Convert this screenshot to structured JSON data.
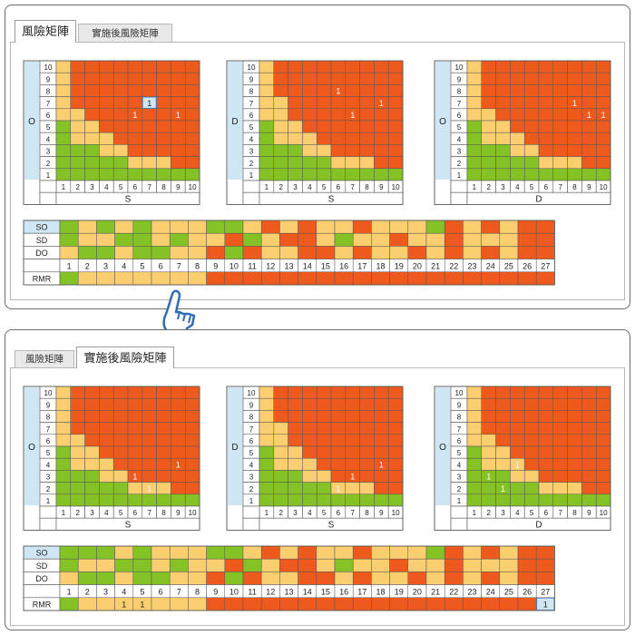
{
  "colors": {
    "red": "#ee5a1e",
    "yellow": "#fbcf70",
    "green": "#84c226",
    "blue": "#cfe7f5",
    "grid": "#555555"
  },
  "icons": [
    "pointing-hand-icon"
  ],
  "panels": [
    {
      "tabs": [
        {
          "label": "風險矩陣",
          "active": true
        },
        {
          "label": "實施後風險矩陣",
          "active": false
        }
      ],
      "matrices": [
        {
          "ylabel": "O",
          "xlabel": "S",
          "thresholds": [
            12,
            16
          ],
          "marks": [
            {
              "row": 7,
              "col": 7,
              "text": "1",
              "highlight": true
            },
            {
              "row": 6,
              "col": 6,
              "text": "1"
            },
            {
              "row": 6,
              "col": 9,
              "text": "1"
            }
          ]
        },
        {
          "ylabel": "D",
          "xlabel": "S",
          "thresholds": [
            14,
            16
          ],
          "marks": [
            {
              "row": 8,
              "col": 6,
              "text": "1"
            },
            {
              "row": 7,
              "col": 9,
              "text": "1"
            },
            {
              "row": 6,
              "col": 7,
              "text": "1"
            }
          ]
        },
        {
          "ylabel": "O",
          "xlabel": "D",
          "thresholds": [
            12,
            16
          ],
          "marks": [
            {
              "row": 7,
              "col": 8,
              "text": "1"
            },
            {
              "row": 6,
              "col": 9,
              "text": "1"
            },
            {
              "row": 6,
              "col": 10,
              "text": "1"
            }
          ]
        }
      ],
      "rmr": {
        "row_labels": [
          "SO",
          "SD",
          "DO"
        ],
        "numbers": [
          "1",
          "2",
          "3",
          "4",
          "5",
          "6",
          "7",
          "8",
          "9",
          "10",
          "11",
          "12",
          "13",
          "14",
          "15",
          "16",
          "17",
          "18",
          "19",
          "20",
          "21",
          "22",
          "23",
          "24",
          "25",
          "26",
          "27"
        ],
        "footer_label": "RMR",
        "rows": [
          [
            "g",
            "y",
            "g",
            "y",
            "g",
            "y",
            "y",
            "y",
            "g",
            "g",
            "y",
            "r",
            "y",
            "r",
            "y",
            "y",
            "r",
            "y",
            "y",
            "y",
            "g",
            "r",
            "y",
            "r",
            "y",
            "r",
            "r"
          ],
          [
            "g",
            "y",
            "y",
            "g",
            "g",
            "y",
            "g",
            "y",
            "y",
            "r",
            "g",
            "y",
            "r",
            "r",
            "y",
            "g",
            "y",
            "y",
            "r",
            "y",
            "y",
            "r",
            "y",
            "y",
            "y",
            "r",
            "r"
          ],
          [
            "y",
            "g",
            "g",
            "y",
            "g",
            "g",
            "y",
            "y",
            "r",
            "g",
            "r",
            "y",
            "y",
            "r",
            "r",
            "y",
            "r",
            "y",
            "y",
            "r",
            "y",
            "r",
            "y",
            "r",
            "y",
            "r",
            "r"
          ]
        ],
        "rmr_colors": [
          "g",
          "y",
          "y",
          "y",
          "y",
          "y",
          "y",
          "y",
          "r",
          "r",
          "r",
          "r",
          "r",
          "r",
          "r",
          "r",
          "r",
          "r",
          "r",
          "r",
          "r",
          "r",
          "r",
          "r",
          "r",
          "r",
          "r"
        ],
        "rmr_marks": []
      }
    },
    {
      "tabs": [
        {
          "label": "風險矩陣",
          "active": false
        },
        {
          "label": "實施後風險矩陣",
          "active": true
        }
      ],
      "matrices": [
        {
          "ylabel": "O",
          "xlabel": "S",
          "thresholds": [
            12,
            16
          ],
          "marks": [
            {
              "row": 3,
              "col": 6,
              "text": "1"
            },
            {
              "row": 2,
              "col": 7,
              "text": "1"
            },
            {
              "row": 4,
              "col": 9,
              "text": "1"
            }
          ]
        },
        {
          "ylabel": "D",
          "xlabel": "S",
          "thresholds": [
            14,
            16
          ],
          "marks": [
            {
              "row": 4,
              "col": 9,
              "text": "1"
            },
            {
              "row": 3,
              "col": 7,
              "text": "1"
            },
            {
              "row": 2,
              "col": 6,
              "text": "1"
            }
          ]
        },
        {
          "ylabel": "O",
          "xlabel": "D",
          "thresholds": [
            12,
            16
          ],
          "marks": [
            {
              "row": 4,
              "col": 4,
              "text": "1"
            },
            {
              "row": 3,
              "col": 2,
              "text": "1"
            },
            {
              "row": 2,
              "col": 3,
              "text": "1"
            }
          ]
        }
      ],
      "rmr": {
        "row_labels": [
          "SO",
          "SD",
          "DO"
        ],
        "numbers": [
          "1",
          "2",
          "3",
          "4",
          "5",
          "6",
          "7",
          "8",
          "9",
          "10",
          "11",
          "12",
          "13",
          "14",
          "15",
          "16",
          "17",
          "18",
          "19",
          "20",
          "21",
          "22",
          "23",
          "24",
          "25",
          "26",
          "27"
        ],
        "footer_label": "RMR",
        "rows": [
          [
            "g",
            "g",
            "g",
            "y",
            "g",
            "y",
            "y",
            "y",
            "g",
            "g",
            "y",
            "r",
            "y",
            "r",
            "y",
            "y",
            "r",
            "y",
            "y",
            "y",
            "g",
            "r",
            "y",
            "r",
            "y",
            "r",
            "r"
          ],
          [
            "g",
            "y",
            "y",
            "g",
            "g",
            "y",
            "g",
            "y",
            "y",
            "r",
            "g",
            "y",
            "r",
            "r",
            "y",
            "g",
            "y",
            "y",
            "r",
            "y",
            "y",
            "r",
            "y",
            "y",
            "y",
            "r",
            "r"
          ],
          [
            "y",
            "g",
            "g",
            "y",
            "g",
            "g",
            "y",
            "y",
            "r",
            "g",
            "r",
            "y",
            "y",
            "r",
            "r",
            "y",
            "r",
            "y",
            "y",
            "r",
            "y",
            "r",
            "y",
            "r",
            "y",
            "r",
            "r"
          ]
        ],
        "rmr_colors": [
          "g",
          "y",
          "y",
          "y",
          "y",
          "y",
          "y",
          "y",
          "r",
          "r",
          "r",
          "r",
          "r",
          "r",
          "r",
          "r",
          "r",
          "r",
          "r",
          "r",
          "r",
          "r",
          "r",
          "r",
          "r",
          "r",
          "r"
        ],
        "rmr_marks": [
          {
            "index": 3,
            "text": "1"
          },
          {
            "index": 4,
            "text": "1"
          },
          {
            "index": 26,
            "text": "1",
            "highlight": true
          }
        ]
      }
    }
  ]
}
